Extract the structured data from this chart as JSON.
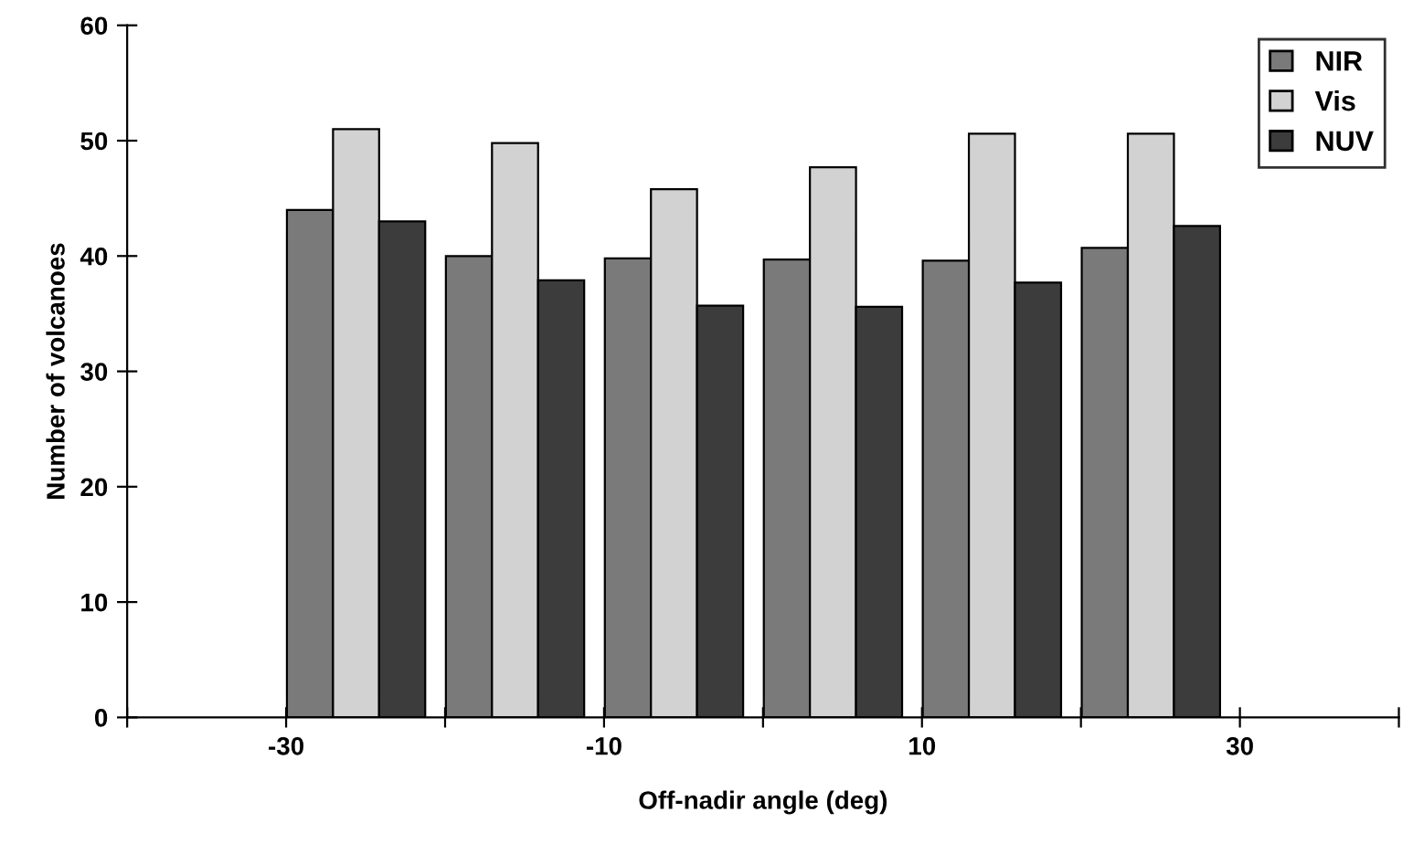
{
  "chart_data": {
    "type": "bar",
    "xlabel": "Off-nadir angle (deg)",
    "ylabel": "Number of volcanoes",
    "xlim": [
      -40,
      40
    ],
    "xticks": [
      {
        "value": -40,
        "label": null
      },
      -30,
      {
        "value": -20,
        "label": null
      },
      -10,
      {
        "value": 0,
        "label": null
      },
      10,
      {
        "value": 20,
        "label": null
      },
      30,
      {
        "value": 40,
        "label": null
      }
    ],
    "ylim": [
      0,
      60
    ],
    "yticks": [
      0,
      10,
      20,
      30,
      40,
      50,
      60
    ],
    "grid": false,
    "legend": "top right",
    "series": [
      {
        "name": "NIR",
        "color": "#7a7a7a",
        "x": [
          -28.5,
          -18.5,
          -8.5,
          1.5,
          11.5,
          21.5
        ],
        "values": [
          44,
          40,
          39.8,
          39.7,
          39.6,
          40.7
        ]
      },
      {
        "name": "Vis",
        "color": "#d2d2d2",
        "x": [
          -25.6,
          -15.6,
          -5.6,
          4.4,
          14.4,
          24.4
        ],
        "values": [
          51,
          49.8,
          45.8,
          47.7,
          50.6,
          50.6
        ]
      },
      {
        "name": "NUV",
        "color": "#3c3c3c",
        "x": [
          -22.7,
          -12.7,
          -2.7,
          7.3,
          17.3,
          27.3
        ],
        "values": [
          43,
          37.9,
          35.7,
          35.6,
          37.7,
          42.6
        ]
      }
    ]
  }
}
